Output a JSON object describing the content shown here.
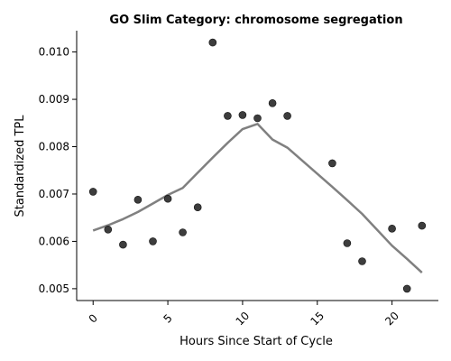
{
  "chart_data": {
    "type": "scatter",
    "title": "GO Slim Category: chromosome segregation",
    "xlabel": "Hours Since Start of Cycle",
    "ylabel": "Standardized TPL",
    "xlim": [
      -1.1,
      23.1
    ],
    "ylim": [
      0.00475,
      0.01045
    ],
    "xticks": [
      0,
      5,
      10,
      15,
      20
    ],
    "yticks": [
      0.005,
      0.006,
      0.007,
      0.008,
      0.009,
      0.01
    ],
    "ytick_labels": [
      "0.005",
      "0.006",
      "0.007",
      "0.008",
      "0.009",
      "0.010"
    ],
    "xtick_rotation": 45,
    "grid": false,
    "points": {
      "x": [
        0,
        1,
        2,
        3,
        4,
        5,
        6,
        7,
        8,
        9,
        10,
        11,
        12,
        13,
        16,
        17,
        18,
        20,
        21,
        22
      ],
      "y": [
        0.00705,
        0.00625,
        0.00593,
        0.00688,
        0.006,
        0.0069,
        0.00619,
        0.00672,
        0.0102,
        0.00865,
        0.00867,
        0.0086,
        0.00892,
        0.00865,
        0.00765,
        0.00596,
        0.00558,
        0.00627,
        0.005,
        0.00633
      ],
      "color": "#333333"
    },
    "trend_line": {
      "x": [
        0,
        1,
        2,
        3,
        4,
        5,
        6,
        7,
        8,
        9,
        10,
        11,
        12,
        13,
        16,
        17,
        18,
        20,
        21,
        22
      ],
      "y": [
        0.00623,
        0.00634,
        0.00647,
        0.00662,
        0.0068,
        0.00698,
        0.00713,
        0.00745,
        0.00777,
        0.00808,
        0.00837,
        0.00848,
        0.00815,
        0.00798,
        0.00715,
        0.00687,
        0.00658,
        0.00591,
        0.00563,
        0.00534
      ],
      "color": "#808080"
    }
  }
}
